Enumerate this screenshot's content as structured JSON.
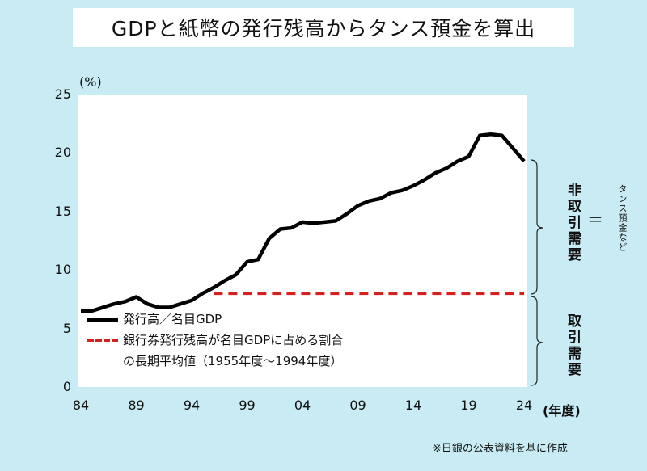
{
  "chart_data": {
    "type": "line",
    "title": "GDPと紙幣の発行残高からタンス預金を算出",
    "ylabel": "(%)",
    "xlabel": "(年度)",
    "ylim": [
      0,
      25
    ],
    "xlim": [
      1984,
      2024
    ],
    "y_ticks": [
      "0",
      "5",
      "10",
      "15",
      "20",
      "25"
    ],
    "x_ticks": [
      "84",
      "89",
      "94",
      "99",
      "04",
      "09",
      "14",
      "19",
      "24"
    ],
    "x_tick_years": [
      1984,
      1989,
      1994,
      1999,
      2004,
      2009,
      2014,
      2019,
      2024
    ],
    "series": [
      {
        "name": "発行高／名目GDP",
        "color": "#000000",
        "x": [
          1984,
          1985,
          1986,
          1987,
          1988,
          1989,
          1990,
          1991,
          1992,
          1993,
          1994,
          1995,
          1996,
          1997,
          1998,
          1999,
          2000,
          2001,
          2002,
          2003,
          2004,
          2005,
          2006,
          2007,
          2008,
          2009,
          2010,
          2011,
          2012,
          2013,
          2014,
          2015,
          2016,
          2017,
          2018,
          2019,
          2020,
          2021,
          2022,
          2023,
          2024
        ],
        "y": [
          6.5,
          6.5,
          6.8,
          7.1,
          7.3,
          7.7,
          7.1,
          6.8,
          6.8,
          7.1,
          7.4,
          8.0,
          8.5,
          9.1,
          9.6,
          10.7,
          10.9,
          12.7,
          13.5,
          13.6,
          14.1,
          14.0,
          14.1,
          14.2,
          14.8,
          15.5,
          15.9,
          16.1,
          16.6,
          16.8,
          17.2,
          17.7,
          18.3,
          18.7,
          19.3,
          19.7,
          21.5,
          21.6,
          21.5,
          20.4,
          19.3
        ]
      },
      {
        "name": "銀行券発行残高が名目GDPに占める割合",
        "name_line2": "の長期平均値（1955年度～1994年度）",
        "color": "#d62020",
        "x": [
          1996,
          2024
        ],
        "y": [
          8.0,
          8.0
        ]
      }
    ],
    "annotations": {
      "upper_label": "非取引需要",
      "equals": "＝",
      "upper_side": "タンス預金など",
      "lower_label": "取引需要"
    },
    "note": "※日銀の公表資料を基に作成",
    "legend_position": "lower-left"
  }
}
